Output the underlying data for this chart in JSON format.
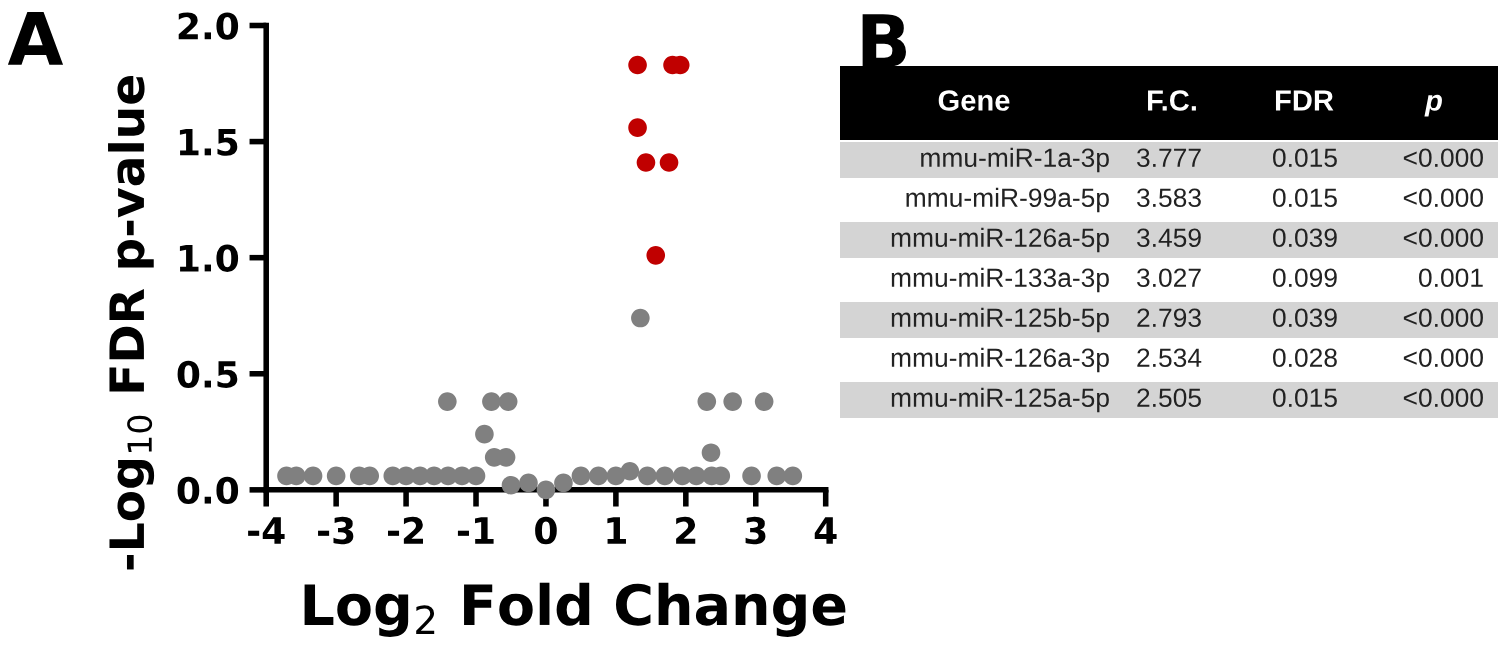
{
  "chart_data": [
    {
      "type": "scatter",
      "title": "A",
      "xlabel": "Log$_{2}$ Fold Change",
      "ylabel": "-Log$_{10}$ FDR p-value",
      "xlim": [
        -4,
        4
      ],
      "xticks": [
        -4,
        -3,
        -2,
        -1,
        0,
        1,
        2,
        3,
        4
      ],
      "ylim": [
        0,
        2
      ],
      "yticks": [
        {
          "value": 0,
          "label": "0.0"
        },
        {
          "value": 0.5,
          "label": "0.5"
        },
        {
          "value": 1,
          "label": "1.0"
        },
        {
          "value": 1.5,
          "label": "1.5"
        },
        {
          "value": 2,
          "label": "2.0"
        }
      ],
      "grid": false,
      "legend": false,
      "marker": "circle",
      "series": [
        {
          "color": "#808080",
          "x": [
            -3.71,
            -3.57,
            -3.33,
            -3.0,
            -2.67,
            -2.52,
            -2.19,
            -2.0,
            -1.8,
            -1.6,
            -1.4,
            -1.2,
            -1.0,
            -1.41,
            -0.78,
            -0.54,
            -0.88,
            -0.74,
            -0.57,
            -0.5,
            -0.25,
            0.0,
            0.25,
            0.5,
            0.75,
            1.0,
            1.2,
            1.45,
            1.7,
            1.95,
            2.15,
            2.37,
            2.5,
            2.3,
            2.67,
            3.12,
            2.36,
            2.94,
            3.3,
            3.53,
            1.35
          ],
          "values": [
            0.06,
            0.06,
            0.06,
            0.06,
            0.06,
            0.06,
            0.06,
            0.06,
            0.06,
            0.06,
            0.06,
            0.06,
            0.06,
            0.38,
            0.38,
            0.38,
            0.24,
            0.14,
            0.14,
            0.02,
            0.03,
            0.0,
            0.03,
            0.06,
            0.06,
            0.06,
            0.08,
            0.06,
            0.06,
            0.06,
            0.06,
            0.06,
            0.06,
            0.38,
            0.38,
            0.38,
            0.16,
            0.06,
            0.06,
            0.06,
            0.74
          ]
        },
        {
          "color": "#c00000",
          "x": [
            1.31,
            1.81,
            1.92,
            1.31,
            1.43,
            1.76,
            1.57
          ],
          "values": [
            1.83,
            1.83,
            1.83,
            1.56,
            1.41,
            1.41,
            1.01
          ]
        }
      ]
    },
    {
      "type": "other",
      "title": "B",
      "annotations": [
        "Gene",
        "F.C.",
        "FDR",
        "p",
        "mmu-miR-1a-3p",
        "3.777",
        "0.015",
        "<0.000",
        "mmu-miR-99a-5p",
        "3.583",
        "0.015",
        "<0.000",
        "mmu-miR-126a-5p",
        "3.459",
        "0.039",
        "<0.000",
        "mmu-miR-133a-3p",
        "3.027",
        "0.099",
        "0.001",
        "mmu-miR-125b-5p",
        "2.793",
        "0.039",
        "<0.000",
        "mmu-miR-126a-3p",
        "2.534",
        "0.028",
        "<0.000",
        "mmu-miR-125a-5p",
        "2.505",
        "0.015",
        "<0.000"
      ]
    }
  ]
}
